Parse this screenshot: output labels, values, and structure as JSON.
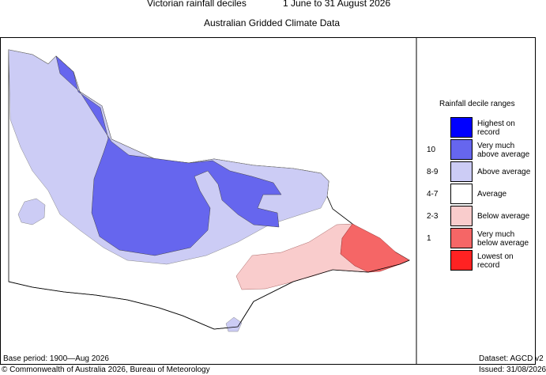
{
  "header": {
    "title": "Victorian rainfall deciles",
    "period": "1 June to 31 August 2026",
    "subtitle": "Australian Gridded Climate Data"
  },
  "legend": {
    "title": "Rainfall decile ranges",
    "entries": [
      {
        "code": "",
        "label": "Highest on\nrecord",
        "color": "#0000ff"
      },
      {
        "code": "10",
        "label": "Very much\nabove average",
        "color": "#6666ee"
      },
      {
        "code": "8-9",
        "label": "Above average",
        "color": "#ccccf5"
      },
      {
        "code": "4-7",
        "label": "Average",
        "color": "#ffffff"
      },
      {
        "code": "2-3",
        "label": "Below average",
        "color": "#f9cccc"
      },
      {
        "code": "1",
        "label": "Very much\nbelow average",
        "color": "#f56666"
      },
      {
        "code": "",
        "label": "Lowest on\nrecord",
        "color": "#ff2222"
      }
    ]
  },
  "footer": {
    "base_period": "Base period: 1900—Aug 2026",
    "dataset": "Dataset: AGCD v2",
    "copyright": "© Commonwealth of Australia 2026, Bureau of Meteorology",
    "issued": "Issued: 31/08/2026"
  }
}
